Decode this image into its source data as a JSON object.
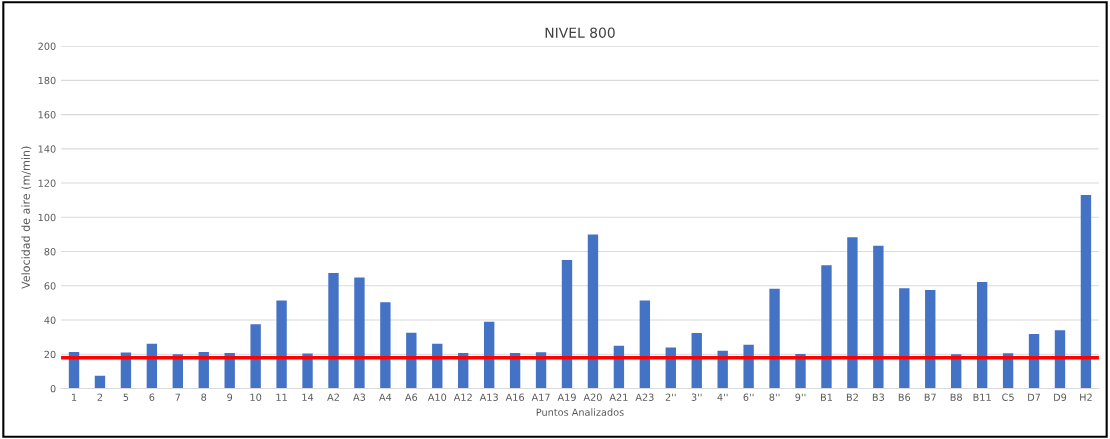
{
  "chart_data": {
    "type": "bar",
    "title": "NIVEL 800",
    "xlabel": "Puntos Analizados",
    "ylabel": "Velocidad de aire (m/min)",
    "categories": [
      "1",
      "2",
      "5",
      "6",
      "7",
      "8",
      "9",
      "10",
      "11",
      "14",
      "A2",
      "A3",
      "A4",
      "A6",
      "A10",
      "A12",
      "A13",
      "A16",
      "A17",
      "A19",
      "A20",
      "A21",
      "A23",
      "2''",
      "3''",
      "4''",
      "6''",
      "8''",
      "9''",
      "B1",
      "B2",
      "B3",
      "B6",
      "B7",
      "B8",
      "B11",
      "C5",
      "D7",
      "D9",
      "H2"
    ],
    "values": [
      21.4,
      7.4,
      21,
      26.2,
      20,
      21.4,
      20.8,
      37.6,
      51.4,
      20.4,
      67.4,
      64.8,
      50.4,
      32.6,
      26.2,
      20.8,
      39,
      20.8,
      21.2,
      75,
      90,
      25,
      51.4,
      24,
      32.4,
      22,
      25.6,
      58.2,
      20.2,
      72,
      88.4,
      83.4,
      58.6,
      57.6,
      20,
      62.2,
      20.6,
      31.8,
      34,
      113
    ],
    "color": "#4472c4",
    "ylim": [
      0,
      200
    ],
    "yticks": [
      0,
      20,
      40,
      60,
      80,
      100,
      120,
      140,
      160,
      180,
      200
    ],
    "grid": "y",
    "ref_lines": [
      {
        "axis": "y",
        "value": 18,
        "color": "#ff0000",
        "line_style": "solid"
      }
    ]
  }
}
